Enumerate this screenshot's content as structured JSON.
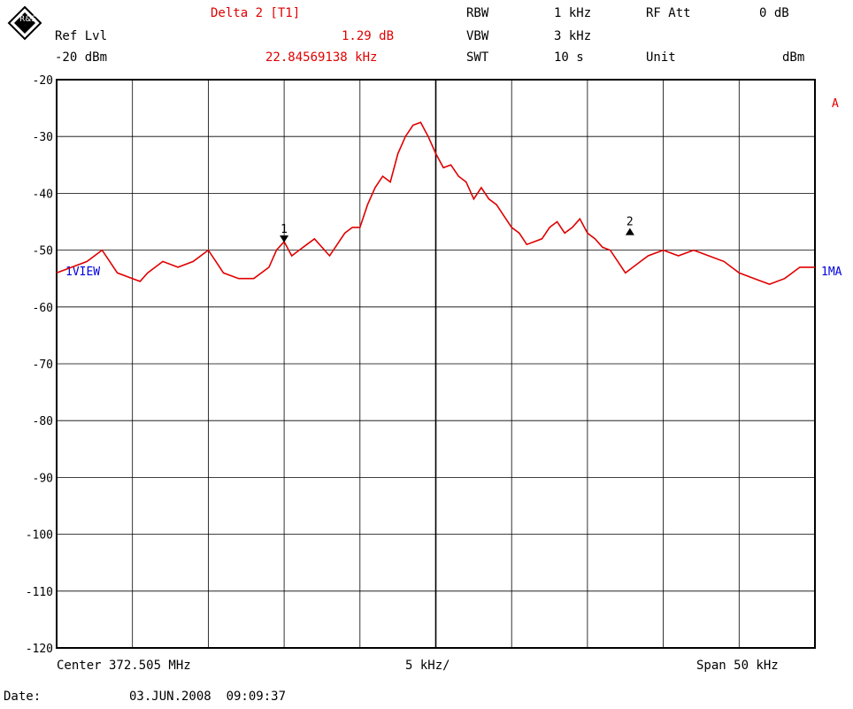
{
  "header": {
    "logo_text": "R&S",
    "marker_title": "Delta 2 [T1]",
    "marker_level": "1.29 dB",
    "marker_freq": "22.84569138 kHz",
    "ref_label": "Ref Lvl",
    "ref_value": "-20 dBm",
    "rbw_label": "RBW",
    "rbw_value": "1 kHz",
    "vbw_label": "VBW",
    "vbw_value": "3 kHz",
    "swt_label": "SWT",
    "swt_value": "10 s",
    "rf_att_label": "RF Att",
    "rf_att_value": "0 dB",
    "unit_label": "Unit",
    "unit_value": "dBm"
  },
  "side_labels": {
    "trace_a": "A",
    "view": "1VIEW",
    "ma": "1MA"
  },
  "footer": {
    "center": "Center 372.505 MHz",
    "div": "5 kHz/",
    "span": "Span 50 kHz",
    "date_label": "Date:",
    "date_value": "03.JUN.2008  09:09:37"
  },
  "colors": {
    "trace": "#e00000",
    "grid": "#000000",
    "marker_text": "#e00000",
    "info_text": "#0000e0"
  },
  "chart_data": {
    "type": "line",
    "title": "",
    "xlabel": "",
    "ylabel": "",
    "x_unit": "kHz offset from center",
    "xlim": [
      -25,
      25
    ],
    "ylim": [
      -120,
      -20
    ],
    "yticks": [
      "-20",
      "-30",
      "-40",
      "-50",
      "-60",
      "-70",
      "-80",
      "-90",
      "-100",
      "-110",
      "-120"
    ],
    "grid": true,
    "series": [
      {
        "x": [
          -25,
          -24,
          -23,
          -22,
          -21.5,
          -21,
          -20,
          -19.5,
          -19,
          -18,
          -17,
          -16,
          -15,
          -14.5,
          -14,
          -13,
          -12,
          -11,
          -10.5,
          -10,
          -9.5,
          -9,
          -8.5,
          -8,
          -7,
          -6.5,
          -6,
          -5.5,
          -5,
          -4.5,
          -4,
          -3.5,
          -3,
          -2.5,
          -2,
          -1.5,
          -1,
          -0.5,
          0,
          0.5,
          1,
          1.5,
          2,
          2.5,
          3,
          3.5,
          4,
          4.5,
          5,
          5.5,
          6,
          7,
          7.5,
          8,
          8.5,
          9,
          9.5,
          10,
          10.5,
          11,
          11.5,
          12,
          12.5,
          13,
          13.5,
          14,
          15,
          16,
          17,
          18,
          19,
          20,
          21,
          22,
          23,
          24,
          25
        ],
        "y": [
          -54,
          -53,
          -52,
          -50,
          -52,
          -54,
          -55,
          -55.5,
          -54,
          -52,
          -53,
          -52,
          -50,
          -52,
          -54,
          -55,
          -55,
          -53,
          -50,
          -48.5,
          -51,
          -50,
          -49,
          -48,
          -51,
          -49,
          -47,
          -46,
          -46,
          -42,
          -39,
          -37,
          -38,
          -33,
          -30,
          -28,
          -27.5,
          -30,
          -33,
          -35.5,
          -35,
          -37,
          -38,
          -41,
          -39,
          -41,
          -42,
          -44,
          -46,
          -47,
          -49,
          -48,
          -46,
          -45,
          -47,
          -46,
          -44.5,
          -47,
          -48,
          -49.5,
          -50,
          -52,
          -54,
          -53,
          -52,
          -51,
          -50,
          -51,
          -50,
          -51,
          -52,
          -54,
          -55,
          -56,
          -55,
          -53,
          -53
        ]
      }
    ],
    "markers": [
      {
        "label": "1",
        "x": -10,
        "y": -48.5,
        "symbol": "down-triangle"
      },
      {
        "label": "2",
        "x": 12.8,
        "y": -47.2,
        "symbol": "up-triangle"
      }
    ]
  }
}
